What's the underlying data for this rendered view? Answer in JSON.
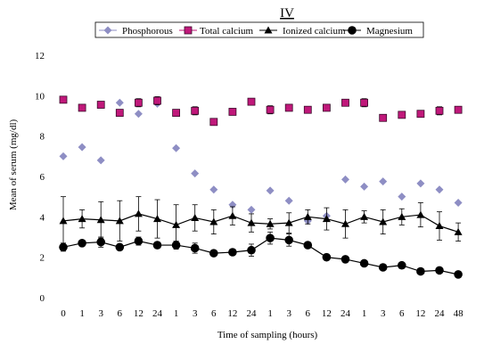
{
  "chart_data": {
    "type": "line",
    "title": "IV",
    "xlabel": "Time of sampling (hours)",
    "ylabel": "Mean of serum (mg/dl)",
    "ylim": [
      0,
      12
    ],
    "yticks": [
      0,
      2,
      4,
      6,
      8,
      10,
      12
    ],
    "categories": [
      "0",
      "1",
      "3",
      "6",
      "12",
      "24",
      "1",
      "3",
      "6",
      "12",
      "24",
      "1",
      "3",
      "6",
      "12",
      "24",
      "1",
      "3",
      "6",
      "12",
      "24",
      "48"
    ],
    "grid": false,
    "legend_position": "top",
    "series": [
      {
        "name": "Phosphorous",
        "marker": "diamond",
        "color": "#8e8ec4",
        "line": false,
        "values": [
          7.0,
          7.45,
          6.8,
          9.65,
          9.1,
          9.6,
          7.4,
          6.15,
          5.35,
          4.6,
          4.35,
          5.3,
          4.8,
          3.8,
          4.05,
          5.85,
          5.5,
          5.75,
          5.0,
          5.65,
          5.35,
          4.7
        ]
      },
      {
        "name": "Total calcium",
        "marker": "square",
        "color": "#c0187a",
        "line": false,
        "values": [
          9.8,
          9.4,
          9.55,
          9.15,
          9.65,
          9.75,
          9.15,
          9.25,
          8.7,
          9.2,
          9.7,
          9.3,
          9.4,
          9.3,
          9.4,
          9.65,
          9.65,
          8.9,
          9.05,
          9.1,
          9.25,
          9.3
        ],
        "errors": [
          0.1,
          0.1,
          0.1,
          0.15,
          0.2,
          0.2,
          0.1,
          0.2,
          0.15,
          0.1,
          0.15,
          0.2,
          0.15,
          0.1,
          0.1,
          0.15,
          0.2,
          0.15,
          0.1,
          0.15,
          0.2,
          0.15
        ]
      },
      {
        "name": "Ionized calcium",
        "marker": "triangle",
        "color": "#000000",
        "line": true,
        "values": [
          3.8,
          3.9,
          3.85,
          3.8,
          4.15,
          3.9,
          3.6,
          3.95,
          3.75,
          4.05,
          3.7,
          3.65,
          3.7,
          4.0,
          3.9,
          3.65,
          4.0,
          3.75,
          4.0,
          4.1,
          3.55,
          3.25
        ],
        "errors": [
          1.2,
          0.45,
          0.9,
          1.0,
          0.85,
          0.95,
          1.0,
          0.65,
          0.6,
          0.45,
          0.45,
          0.25,
          0.5,
          0.35,
          0.55,
          0.7,
          0.3,
          0.6,
          0.4,
          0.6,
          0.7,
          0.45
        ]
      },
      {
        "name": "Magnesium",
        "marker": "circle",
        "color": "#000000",
        "line": true,
        "values": [
          2.5,
          2.7,
          2.75,
          2.5,
          2.8,
          2.6,
          2.6,
          2.45,
          2.2,
          2.25,
          2.35,
          2.95,
          2.85,
          2.6,
          2.0,
          1.9,
          1.7,
          1.5,
          1.6,
          1.3,
          1.35,
          1.15
        ],
        "errors": [
          0.2,
          0.15,
          0.25,
          0.15,
          0.2,
          0.15,
          0.2,
          0.25,
          0.1,
          0.15,
          0.3,
          0.3,
          0.3,
          0.1,
          0.15,
          0.1,
          0.05,
          0.05,
          0.05,
          0.05,
          0.1,
          0.1
        ]
      }
    ]
  }
}
